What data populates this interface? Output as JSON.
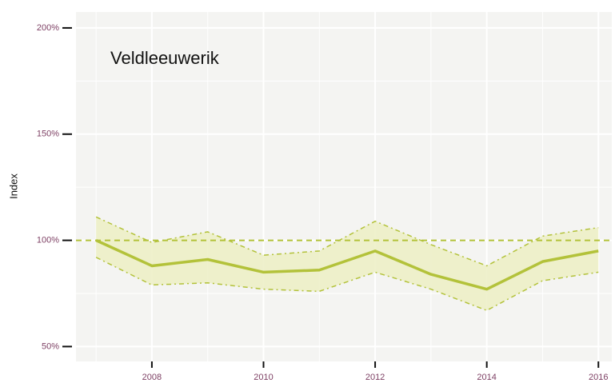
{
  "chart_data": {
    "type": "line",
    "title": "Veldleeuwerik",
    "y_label": "Index",
    "x": [
      2007,
      2008,
      2009,
      2010,
      2011,
      2012,
      2013,
      2014,
      2015,
      2016
    ],
    "values": [
      100,
      88,
      91,
      85,
      86,
      95,
      84,
      77,
      90,
      95
    ],
    "upper": [
      111,
      99,
      104,
      93,
      95,
      109,
      98,
      88,
      102,
      106
    ],
    "lower": [
      92,
      79,
      80,
      77,
      76,
      85,
      77,
      67,
      81,
      85
    ],
    "reference_line": 100,
    "color": "#b3c23a",
    "band_color": "#eceec4",
    "xlim": [
      2006.64,
      2016.24
    ],
    "ylim": [
      43,
      207.5
    ],
    "xticks": [
      2008,
      2010,
      2012,
      2014,
      2016
    ],
    "yticks": [
      {
        "value": 50,
        "label": "50%"
      },
      {
        "value": 100,
        "label": "100%"
      },
      {
        "value": 150,
        "label": "150%"
      },
      {
        "value": 200,
        "label": "200%"
      }
    ],
    "minor_xticks": [
      2007,
      2009,
      2011,
      2013,
      2015
    ],
    "minor_yticks": [
      75,
      125,
      175
    ],
    "grid": true
  }
}
